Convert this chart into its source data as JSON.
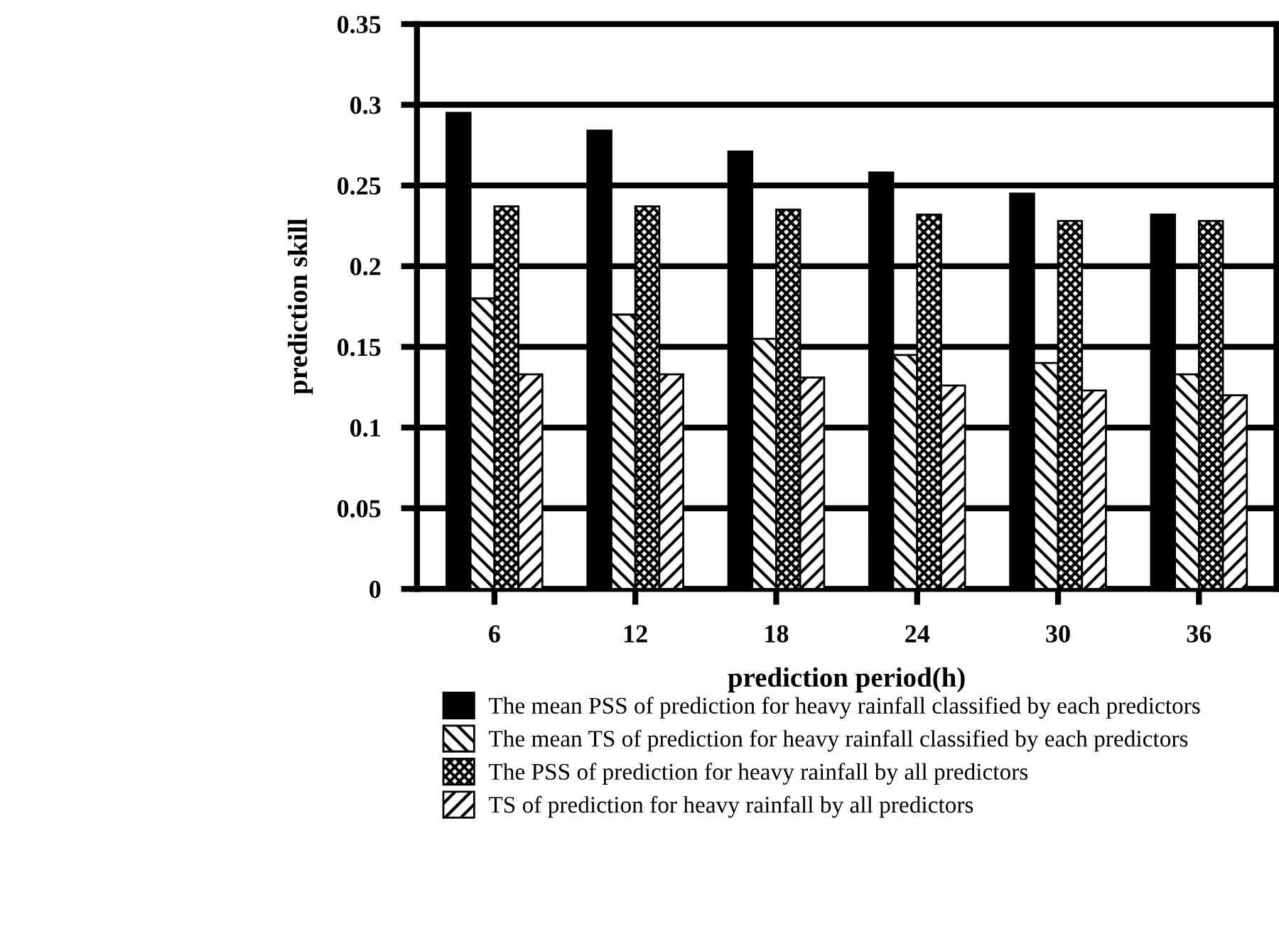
{
  "chart_data": {
    "type": "bar",
    "xlabel": "prediction period(h)",
    "ylabel": "prediction skill",
    "categories": [
      "6",
      "12",
      "18",
      "24",
      "30",
      "36"
    ],
    "series": [
      {
        "name": "The mean PSS of prediction for heavy rainfall classified by each predictors",
        "color": "#000000",
        "values": [
          0.295,
          0.284,
          0.271,
          0.258,
          0.245,
          0.232
        ]
      },
      {
        "name": "The mean TS of prediction for heavy rainfall classified by each predictors",
        "color": "#000000",
        "values": [
          0.18,
          0.17,
          0.155,
          0.145,
          0.14,
          0.133
        ]
      },
      {
        "name": "The PSS of prediction for heavy rainfall by all predictors",
        "color": "#000000",
        "values": [
          0.237,
          0.237,
          0.235,
          0.232,
          0.228,
          0.228
        ]
      },
      {
        "name": "TS of prediction for heavy rainfall by all predictors",
        "color": "#000000",
        "values": [
          0.133,
          0.133,
          0.131,
          0.126,
          0.123,
          0.12
        ]
      }
    ],
    "ylim": [
      0,
      0.35
    ],
    "yticks": [
      {
        "value": 0,
        "label": "0"
      },
      0.05,
      0.1,
      0.15,
      0.2,
      0.25,
      0.3,
      0.35
    ],
    "grid": "y",
    "legend": "bottom"
  }
}
